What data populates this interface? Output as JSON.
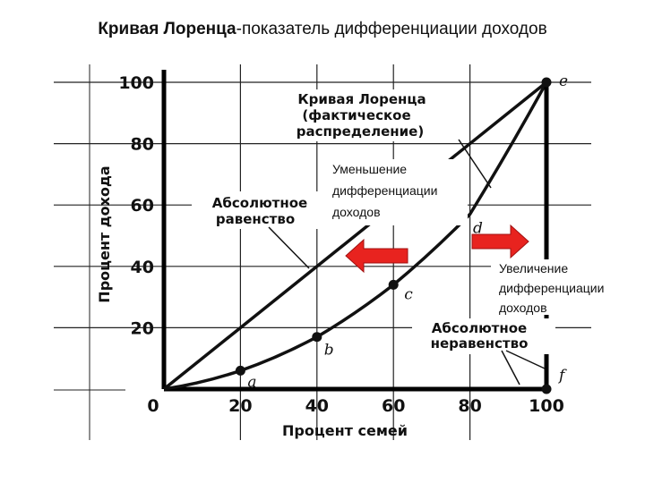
{
  "slide": {
    "title_bold": "Кривая Лоренца",
    "title_rest": "-показатель дифференциации доходов"
  },
  "chart_data": {
    "type": "line",
    "title": "",
    "xlabel": "Процент семей",
    "ylabel": "Процент дохода",
    "xlim": [
      0,
      100
    ],
    "ylim": [
      0,
      100
    ],
    "x_ticks": [
      "0",
      "20",
      "40",
      "60",
      "80",
      "100"
    ],
    "y_ticks": [
      "20",
      "40",
      "60",
      "80",
      "100"
    ],
    "grid": true,
    "series": [
      {
        "name": "Абсолютное равенство",
        "x": [
          0,
          100
        ],
        "y": [
          0,
          100
        ]
      },
      {
        "name": "Кривая Лоренца (фактическое распределение)",
        "x": [
          0,
          20,
          40,
          60,
          80,
          100
        ],
        "y": [
          0,
          6,
          17,
          34,
          57,
          100
        ]
      },
      {
        "name": "Абсолютное неравенство",
        "x": [
          0,
          100,
          100
        ],
        "y": [
          0,
          0,
          100
        ]
      }
    ],
    "points": [
      {
        "label": "a",
        "x": 20,
        "y": 6
      },
      {
        "label": "b",
        "x": 40,
        "y": 17
      },
      {
        "label": "c",
        "x": 60,
        "y": 34
      },
      {
        "label": "d",
        "x": 78,
        "y": 55
      },
      {
        "label": "e",
        "x": 100,
        "y": 100
      },
      {
        "label": "f",
        "x": 100,
        "y": 0
      }
    ],
    "annotations": {
      "lorenz_line1": "Кривая Лоренца",
      "lorenz_line2": "(фактическое",
      "lorenz_line3": "распределение)",
      "equality_line1": "Абсолютное",
      "equality_line2": "равенство",
      "inequality_line1": "Абсолютное",
      "inequality_line2": "неравенство",
      "decrease_line1": "Уменьшение",
      "decrease_line2": "дифференциации",
      "decrease_line3": "доходов",
      "increase_line1": "Увеличение",
      "increase_line2": "дифференциации",
      "increase_line3": "доходов"
    },
    "colors": {
      "arrow": "#e8231f",
      "line": "#111111"
    }
  }
}
